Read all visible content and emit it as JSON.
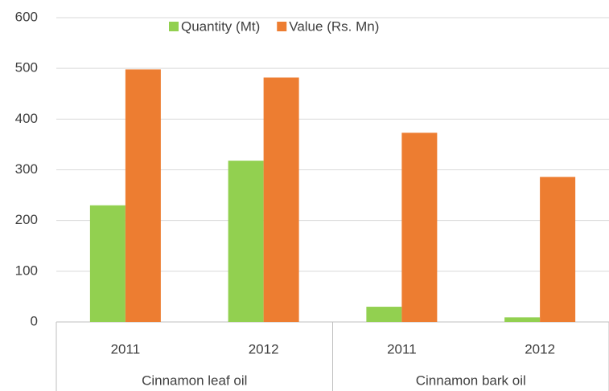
{
  "chart_data": {
    "type": "bar",
    "groups": [
      {
        "name": "Cinnamon leaf oil",
        "categories": [
          "2011",
          "2012"
        ]
      },
      {
        "name": "Cinnamon bark oil",
        "categories": [
          "2011",
          "2012"
        ]
      }
    ],
    "series": [
      {
        "name": "Quantity (Mt)",
        "color": "#92d050",
        "values": [
          230,
          318,
          30,
          9
        ]
      },
      {
        "name": "Value (Rs. Mn)",
        "color": "#ed7d31",
        "values": [
          498,
          482,
          373,
          286
        ]
      }
    ],
    "ylim": [
      0,
      600
    ],
    "yticks": [
      0,
      100,
      200,
      300,
      400,
      500,
      600
    ],
    "grid": true,
    "legend": "top"
  }
}
